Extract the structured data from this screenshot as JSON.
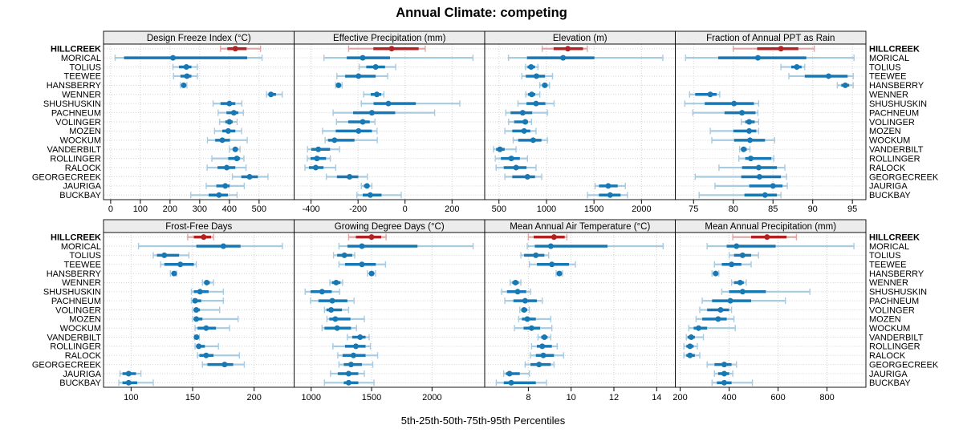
{
  "title": "Annual Climate: competing",
  "caption": "5th-25th-50th-75th-95th Percentiles",
  "highlight_site": "HILLCREEK",
  "percentiles": [
    5,
    25,
    50,
    75,
    95
  ],
  "sites": [
    "HILLCREEK",
    "MORICAL",
    "TOLIUS",
    "TEEWEE",
    "HANSBERRY",
    "WENNER",
    "SHUSHUSKIN",
    "PACHNEUM",
    "VOLINGER",
    "MOZEN",
    "WOCKUM",
    "VANDERBILT",
    "ROLLINGER",
    "RALOCK",
    "GEORGECREEK",
    "JAURIGA",
    "BUCKBAY"
  ],
  "colors": {
    "series": "#1878b4",
    "series_light": "#a8cbe0",
    "highlight": "#b22222",
    "highlight_light": "#dfa5a5",
    "grid": "#d2d2d2",
    "strip_bg": "#ececec",
    "panel_border": "#000000"
  },
  "chart_data": [
    {
      "type": "interval-dotplot",
      "title": "Design Freeze Index (°C)",
      "row": 0,
      "col": 0,
      "xdomain": [
        -24,
        618
      ],
      "xticks": [
        0,
        100,
        200,
        300,
        400,
        500
      ],
      "values": {
        "HILLCREEK": [
          370,
          393,
          420,
          458,
          505
        ],
        "MORICAL": [
          15,
          45,
          210,
          460,
          510
        ],
        "TOLIUS": [
          210,
          230,
          255,
          272,
          292
        ],
        "TEEWEE": [
          212,
          235,
          257,
          272,
          292
        ],
        "HANSBERRY": [
          235,
          241,
          246,
          251,
          257
        ],
        "WENNER": [
          525,
          532,
          540,
          557,
          578
        ],
        "SHUSHUSKIN": [
          345,
          370,
          400,
          420,
          442
        ],
        "PACHNEUM": [
          362,
          390,
          415,
          430,
          447
        ],
        "VOLINGER": [
          367,
          386,
          400,
          411,
          426
        ],
        "MOZEN": [
          350,
          376,
          396,
          420,
          441
        ],
        "WOCKUM": [
          326,
          352,
          376,
          402,
          460
        ],
        "VANDERBILT": [
          400,
          411,
          420,
          428,
          436
        ],
        "ROLLINGER": [
          341,
          396,
          425,
          436,
          449
        ],
        "RALOCK": [
          325,
          360,
          391,
          420,
          456
        ],
        "GEORGECREEK": [
          410,
          440,
          468,
          496,
          530
        ],
        "JAURIGA": [
          322,
          356,
          386,
          401,
          450
        ],
        "BUCKBAY": [
          270,
          330,
          365,
          395,
          426
        ]
      }
    },
    {
      "type": "interval-dotplot",
      "title": "Effective Precipitation (mm)",
      "row": 0,
      "col": 1,
      "xdomain": [
        -472,
        339
      ],
      "xticks": [
        -400,
        -200,
        0,
        200
      ],
      "values": {
        "HILLCREEK": [
          -240,
          -135,
          -57,
          58,
          86
        ],
        "MORICAL": [
          -345,
          -248,
          -180,
          -64,
          289
        ],
        "TOLIUS": [
          -195,
          -165,
          -125,
          -85,
          -40
        ],
        "TEEWEE": [
          -290,
          -255,
          -198,
          -125,
          -74
        ],
        "HANSBERRY": [
          -295,
          -289,
          -283,
          -276,
          -268
        ],
        "WENNER": [
          -176,
          -146,
          -120,
          -101,
          -90
        ],
        "SHUSHUSKIN": [
          -186,
          -134,
          -71,
          46,
          233
        ],
        "PACHNEUM": [
          -306,
          -221,
          -141,
          -42,
          126
        ],
        "VOLINGER": [
          -292,
          -242,
          -180,
          -150,
          -128
        ],
        "MOZEN": [
          -351,
          -295,
          -198,
          -141,
          -119
        ],
        "WOCKUM": [
          -340,
          -328,
          -300,
          -215,
          -118
        ],
        "VANDERBILT": [
          -415,
          -399,
          -369,
          -319,
          -279
        ],
        "ROLLINGER": [
          -416,
          -402,
          -375,
          -336,
          -318
        ],
        "RALOCK": [
          -426,
          -409,
          -380,
          -347,
          -295
        ],
        "GEORGECREEK": [
          -335,
          -290,
          -236,
          -199,
          -160
        ],
        "JAURIGA": [
          -186,
          -175,
          -162,
          -151,
          -141
        ],
        "BUCKBAY": [
          -205,
          -180,
          -148,
          -100,
          -16
        ]
      }
    },
    {
      "type": "interval-dotplot",
      "title": "Elevation (m)",
      "row": 0,
      "col": 2,
      "xdomain": [
        350,
        2356
      ],
      "xticks": [
        500,
        1000,
        1500,
        2000
      ],
      "values": {
        "HILLCREEK": [
          955,
          1075,
          1225,
          1385,
          1430
        ],
        "MORICAL": [
          600,
          795,
          1175,
          1505,
          2225
        ],
        "TOLIUS": [
          780,
          800,
          838,
          880,
          910
        ],
        "TEEWEE": [
          740,
          782,
          894,
          985,
          1063
        ],
        "HANSBERRY": [
          930,
          955,
          982,
          1012,
          1032
        ],
        "WENNER": [
          782,
          805,
          845,
          882,
          930
        ],
        "SHUSHUSKIN": [
          700,
          790,
          890,
          988,
          1080
        ],
        "PACHNEUM": [
          572,
          622,
          750,
          850,
          1010
        ],
        "VOLINGER": [
          602,
          660,
          776,
          806,
          842
        ],
        "MOZEN": [
          562,
          640,
          765,
          830,
          890
        ],
        "WOCKUM": [
          650,
          702,
          860,
          948,
          1010
        ],
        "VANDERBILT": [
          442,
          470,
          510,
          560,
          680
        ],
        "ROLLINGER": [
          462,
          520,
          630,
          720,
          800
        ],
        "RALOCK": [
          470,
          550,
          680,
          790,
          890
        ],
        "GEORGECREEK": [
          562,
          640,
          800,
          880,
          950
        ],
        "JAURIGA": [
          1512,
          1552,
          1650,
          1750,
          1830
        ],
        "BUCKBAY": [
          1432,
          1552,
          1670,
          1780,
          1852
        ]
      }
    },
    {
      "type": "interval-dotplot",
      "title": "Fraction of Annual PPT as Rain",
      "row": 0,
      "col": 3,
      "xdomain": [
        72.7,
        96.7
      ],
      "xticks": [
        75,
        80,
        85,
        90,
        95
      ],
      "values": {
        "HILLCREEK": [
          80,
          83,
          86,
          88.2,
          90.2
        ],
        "MORICAL": [
          74,
          78.1,
          83.1,
          89.2,
          95.2
        ],
        "TOLIUS": [
          86,
          87.3,
          88,
          88.6,
          89
        ],
        "TEEWEE": [
          87,
          89,
          92,
          94.4,
          95.1
        ],
        "HANSBERRY": [
          93.1,
          93.6,
          94.1,
          94.6,
          95.1
        ],
        "WENNER": [
          74.5,
          75.2,
          77.1,
          77.9,
          78.3
        ],
        "SHUSHUSKIN": [
          73.9,
          76.4,
          80.1,
          82.6,
          83.2
        ],
        "PACHNEUM": [
          74.9,
          78.9,
          81.1,
          82.8,
          83.1
        ],
        "VOLINGER": [
          81,
          81.5,
          82,
          82.7,
          83.2
        ],
        "MOZEN": [
          77.1,
          80,
          82,
          82.9,
          83.2
        ],
        "WOCKUM": [
          77.3,
          80.1,
          82.1,
          84,
          85.2
        ],
        "VANDERBILT": [
          80.8,
          81,
          81.3,
          81.7,
          82.1
        ],
        "ROLLINGER": [
          80.7,
          81.5,
          82.2,
          84.8,
          85.1
        ],
        "RALOCK": [
          78.2,
          81.1,
          83.2,
          85.5,
          86.5
        ],
        "GEORGECREEK": [
          75.2,
          81,
          83.3,
          86,
          86.7
        ],
        "JAURIGA": [
          77.7,
          82,
          85,
          86.2,
          86.8
        ],
        "BUCKBAY": [
          75.7,
          81.4,
          84,
          85.5,
          86
        ]
      }
    },
    {
      "type": "interval-dotplot",
      "title": "Frost-Free Days",
      "row": 1,
      "col": 0,
      "xdomain": [
        77.6,
        232.5
      ],
      "xticks": [
        100,
        150,
        200
      ],
      "values": {
        "HILLCREEK": [
          146,
          151,
          159,
          165,
          167
        ],
        "MORICAL": [
          106,
          153,
          175,
          189,
          223
        ],
        "TOLIUS": [
          118,
          121,
          127,
          139,
          147
        ],
        "TEEWEE": [
          124,
          127,
          140,
          151,
          153
        ],
        "HANSBERRY": [
          132,
          133.5,
          135,
          136,
          137
        ],
        "WENNER": [
          158,
          159.5,
          161.5,
          164,
          167
        ],
        "SHUSHUSKIN": [
          149,
          151,
          156,
          163,
          175
        ],
        "PACHNEUM": [
          149,
          150,
          152,
          157,
          175
        ],
        "VOLINGER": [
          150,
          151,
          153,
          156,
          172
        ],
        "MOZEN": [
          150,
          151,
          153,
          158,
          187
        ],
        "WOCKUM": [
          152,
          154,
          161,
          169,
          180
        ],
        "VANDERBILT": [
          151.5,
          152.3,
          153.2,
          154.3,
          155.5
        ],
        "ROLLINGER": [
          152,
          153,
          155,
          160,
          171
        ],
        "RALOCK": [
          154,
          155.5,
          161,
          167,
          188
        ],
        "GEORGECREEK": [
          158,
          162,
          176,
          183,
          192
        ],
        "JAURIGA": [
          91,
          93,
          98,
          104,
          108
        ],
        "BUCKBAY": [
          90,
          93,
          98,
          105,
          118
        ]
      }
    },
    {
      "type": "interval-dotplot",
      "title": "Growing Degree Days (°C)",
      "row": 1,
      "col": 1,
      "xdomain": [
        859,
        2436
      ],
      "xticks": [
        1000,
        1500,
        2000
      ],
      "values": {
        "HILLCREEK": [
          1310,
          1370,
          1500,
          1580,
          1620
        ],
        "MORICAL": [
          1230,
          1300,
          1420,
          1880,
          2340
        ],
        "TOLIUS": [
          1185,
          1215,
          1275,
          1340,
          1360
        ],
        "TEEWEE": [
          1230,
          1280,
          1420,
          1535,
          1615
        ],
        "HANSBERRY": [
          1465,
          1480,
          1500,
          1520,
          1532
        ],
        "WENNER": [
          1155,
          1172,
          1207,
          1243,
          1260
        ],
        "SHUSHUSKIN": [
          950,
          995,
          1090,
          1170,
          1235
        ],
        "PACHNEUM": [
          995,
          1060,
          1175,
          1300,
          1355
        ],
        "VOLINGER": [
          1110,
          1127,
          1165,
          1255,
          1310
        ],
        "MOZEN": [
          1130,
          1150,
          1200,
          1325,
          1440
        ],
        "WOCKUM": [
          1090,
          1110,
          1215,
          1330,
          1375
        ],
        "VANDERBILT": [
          1300,
          1340,
          1405,
          1450,
          1480
        ],
        "ROLLINGER": [
          1180,
          1280,
          1370,
          1450,
          1490
        ],
        "RALOCK": [
          1220,
          1260,
          1350,
          1450,
          1550
        ],
        "GEORGECREEK": [
          1230,
          1270,
          1330,
          1420,
          1510
        ],
        "JAURIGA": [
          1160,
          1220,
          1310,
          1390,
          1440
        ],
        "BUCKBAY": [
          1110,
          1270,
          1310,
          1390,
          1520
        ]
      }
    },
    {
      "type": "interval-dotplot",
      "title": "Mean Annual Air Temperature (°C)",
      "row": 1,
      "col": 2,
      "xdomain": [
        5.96,
        14.87
      ],
      "xticks": [
        8,
        10,
        12,
        14
      ],
      "values": {
        "HILLCREEK": [
          8.0,
          8.25,
          9.2,
          9.7,
          9.8
        ],
        "MORICAL": [
          7.95,
          8.3,
          9.05,
          11.7,
          14.3
        ],
        "TOLIUS": [
          7.65,
          7.8,
          8.35,
          8.75,
          8.95
        ],
        "TEEWEE": [
          8.05,
          8.4,
          9.1,
          9.9,
          10.2
        ],
        "HANSBERRY": [
          9.3,
          9.37,
          9.45,
          9.53,
          9.6
        ],
        "WENNER": [
          7.15,
          7.25,
          7.4,
          7.55,
          7.65
        ],
        "SHUSHUSKIN": [
          6.75,
          7.0,
          7.5,
          7.9,
          8.1
        ],
        "PACHNEUM": [
          6.9,
          7.3,
          7.85,
          8.4,
          8.65
        ],
        "VOLINGER": [
          7.6,
          7.67,
          7.8,
          7.95,
          8.05
        ],
        "MOZEN": [
          7.55,
          7.7,
          7.95,
          8.35,
          9.05
        ],
        "WOCKUM": [
          7.35,
          7.78,
          8.15,
          8.55,
          9.1
        ],
        "VANDERBILT": [
          8.45,
          8.6,
          8.75,
          8.9,
          9.05
        ],
        "ROLLINGER": [
          8.15,
          8.4,
          8.65,
          9.1,
          9.35
        ],
        "RALOCK": [
          8.1,
          8.35,
          8.7,
          9.2,
          9.65
        ],
        "GEORGECREEK": [
          7.85,
          8.1,
          8.5,
          9.05,
          9.2
        ],
        "JAURIGA": [
          6.85,
          6.95,
          7.12,
          7.6,
          8.05
        ],
        "BUCKBAY": [
          6.5,
          6.85,
          7.2,
          8.35,
          8.85
        ]
      }
    },
    {
      "type": "interval-dotplot",
      "title": "Mean Annual Precipitation (mm)",
      "row": 1,
      "col": 3,
      "xdomain": [
        180,
        959
      ],
      "xticks": [
        200,
        400,
        600,
        800
      ],
      "values": {
        "HILLCREEK": [
          415,
          490,
          555,
          635,
          675
        ],
        "MORICAL": [
          310,
          390,
          430,
          590,
          910
        ],
        "TOLIUS": [
          400,
          420,
          455,
          490,
          520
        ],
        "TEEWEE": [
          340,
          370,
          410,
          450,
          490
        ],
        "HANSBERRY": [
          330,
          337,
          345,
          352,
          358
        ],
        "WENNER": [
          410,
          420,
          445,
          460,
          470
        ],
        "SHUSHUSKIN": [
          370,
          400,
          455,
          550,
          730
        ],
        "PACHNEUM": [
          290,
          330,
          405,
          490,
          630
        ],
        "VOLINGER": [
          280,
          310,
          365,
          400,
          410
        ],
        "MOZEN": [
          265,
          290,
          355,
          390,
          420
        ],
        "WOCKUM": [
          235,
          255,
          275,
          310,
          425
        ],
        "VANDERBILT": [
          225,
          230,
          245,
          260,
          295
        ],
        "ROLLINGER": [
          215,
          225,
          240,
          255,
          270
        ],
        "RALOCK": [
          215,
          225,
          240,
          260,
          280
        ],
        "GEORGECREEK": [
          310,
          340,
          380,
          410,
          430
        ],
        "JAURIGA": [
          340,
          355,
          380,
          400,
          415
        ],
        "BUCKBAY": [
          330,
          350,
          380,
          410,
          495
        ]
      }
    }
  ]
}
